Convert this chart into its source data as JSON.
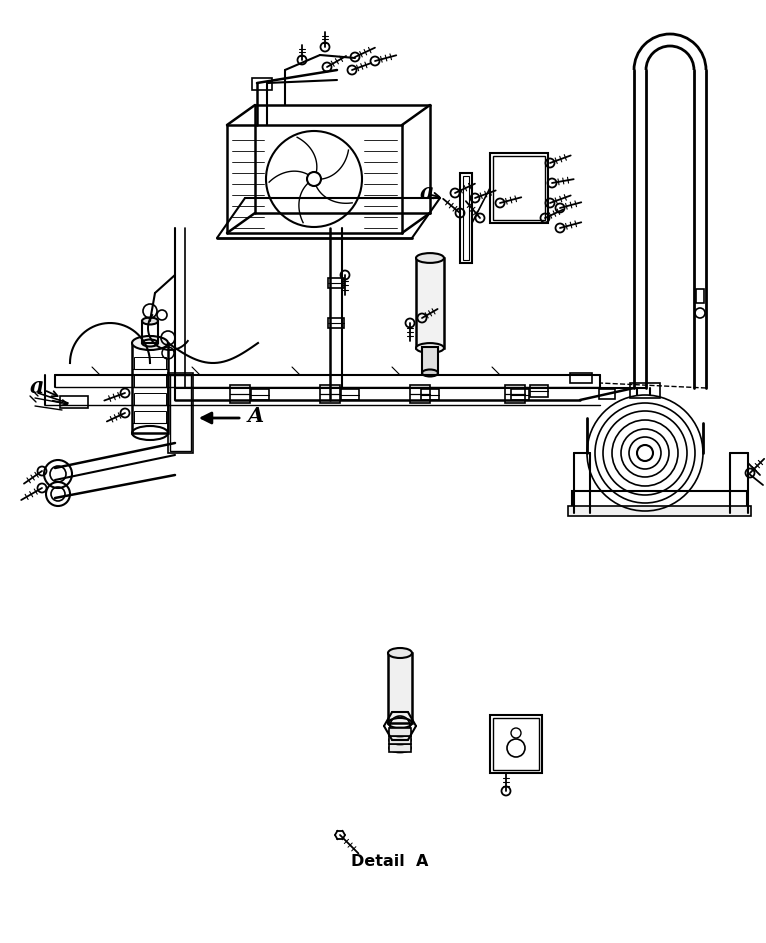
{
  "background_color": "#ffffff",
  "line_color": "#000000",
  "fig_width": 7.66,
  "fig_height": 9.43,
  "dpi": 100,
  "detail_a_text": "Detail  A",
  "label_a": "a",
  "label_A": "A"
}
